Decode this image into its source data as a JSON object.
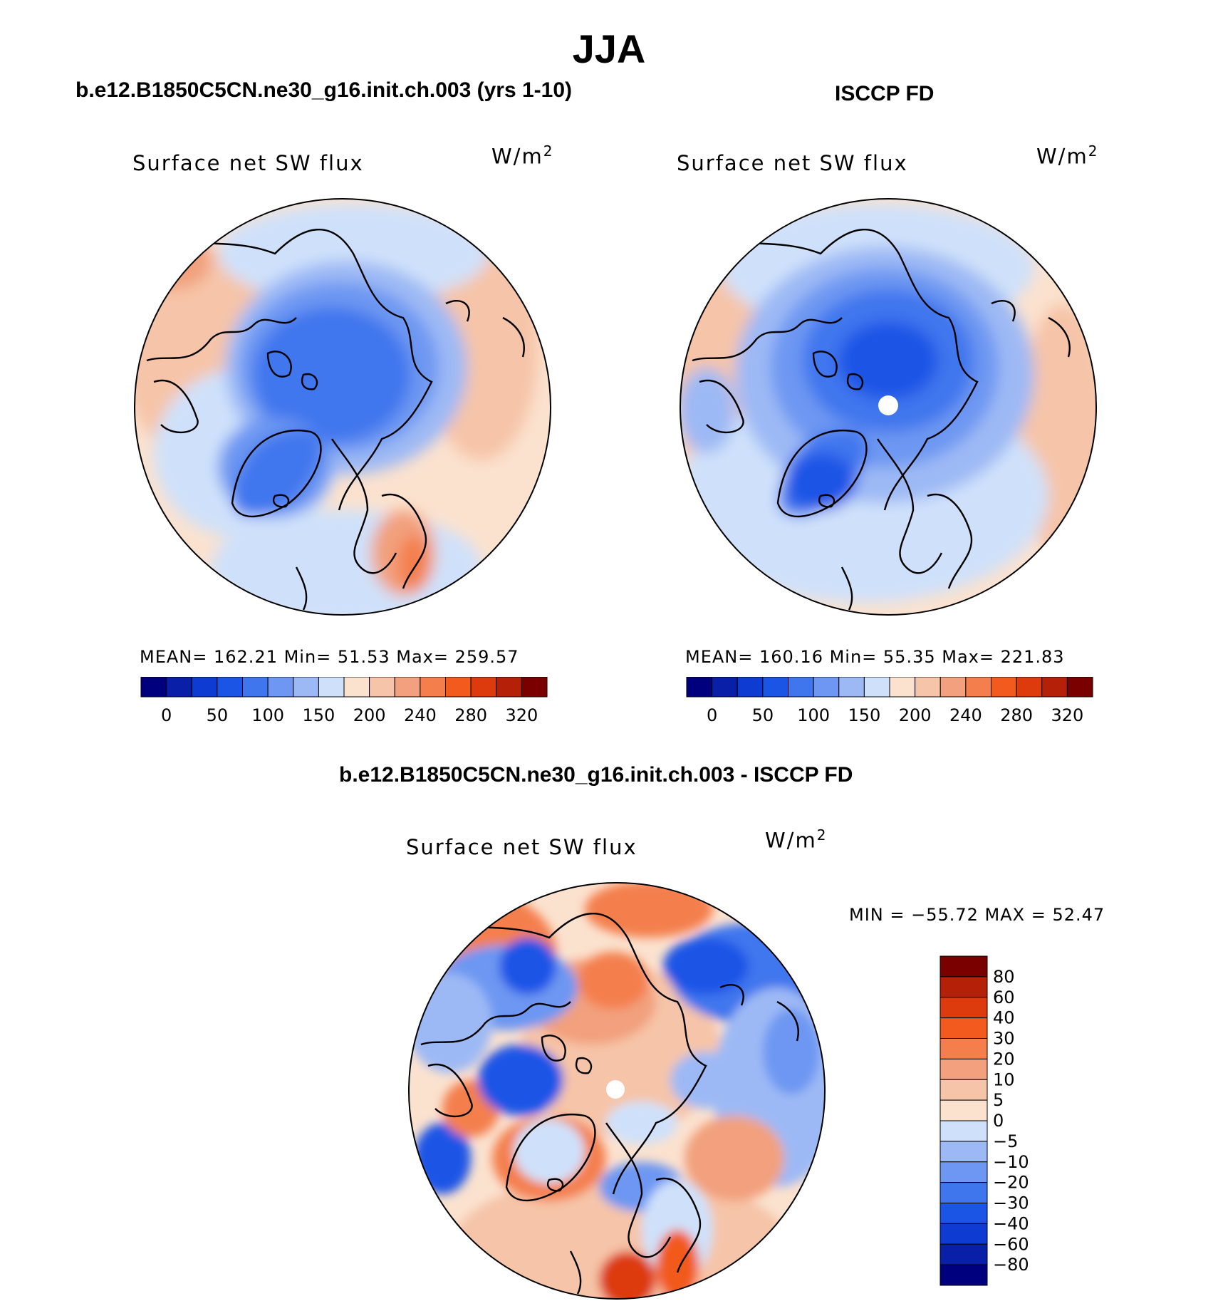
{
  "figure": {
    "season": "JJA",
    "panels": [
      {
        "case_title": "b.e12.B1850C5CN.ne30_g16.init.ch.003 (yrs 1-10)",
        "variable": "Surface net SW flux",
        "units_base": "W/m",
        "units_exp": "2",
        "stats_text": "MEAN=  162.21   Min=   51.53   Max=  259.57"
      },
      {
        "case_title": "ISCCP FD",
        "variable": "Surface net SW flux",
        "units_base": "W/m",
        "units_exp": "2",
        "stats_text": "MEAN=  160.16   Min=   55.35   Max=  221.83"
      }
    ],
    "diff_panel": {
      "case_title": "b.e12.B1850C5CN.ne30_g16.init.ch.003 - ISCCP FD",
      "variable": "Surface net SW flux",
      "units_base": "W/m",
      "units_exp": "2",
      "minmax_text": "MIN = −55.72  MAX =   52.47"
    }
  },
  "map_data": {
    "projection": "north-polar-stereographic",
    "stats": {
      "model": {
        "mean": 162.21,
        "min": 51.53,
        "max": 259.57
      },
      "obs": {
        "mean": 160.16,
        "min": 55.35,
        "max": 221.83
      },
      "diff": {
        "min": -55.72,
        "max": 52.47
      }
    },
    "colorbar_abs": {
      "tick_labels": [
        "0",
        "50",
        "100",
        "150",
        "200",
        "240",
        "280",
        "320"
      ],
      "colors": [
        "#00007f",
        "#0a1fa8",
        "#0e3bd1",
        "#1a55e6",
        "#3f76ee",
        "#6d97f2",
        "#9db9f5",
        "#cfe1fa",
        "#fbe2cf",
        "#f6c4a8",
        "#f2a07d",
        "#f47f4d",
        "#f25a1e",
        "#dd3a0d",
        "#b42008",
        "#7a0000"
      ]
    },
    "colorbar_diff": {
      "labels": [
        "80",
        "60",
        "40",
        "30",
        "20",
        "10",
        "5",
        "0",
        "−5",
        "−10",
        "−20",
        "−30",
        "−40",
        "−60",
        "−80"
      ],
      "colors": [
        "#7a0000",
        "#b42008",
        "#dd3a0d",
        "#f25a1e",
        "#f47f4d",
        "#f2a07d",
        "#f6c4a8",
        "#fbe2cf",
        "#cfe1fa",
        "#9db9f5",
        "#6d97f2",
        "#3f76ee",
        "#1a55e6",
        "#0e3bd1",
        "#0a1fa8",
        "#00007f"
      ]
    }
  }
}
